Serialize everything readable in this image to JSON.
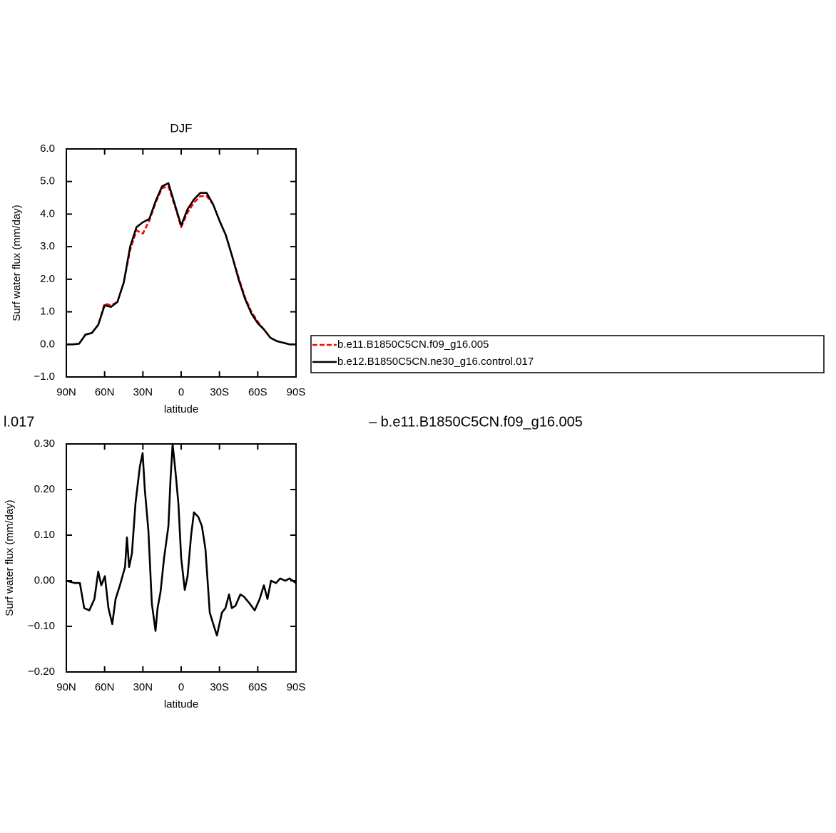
{
  "chart_data": [
    {
      "type": "line",
      "title": "DJF",
      "xlabel": "latitude",
      "ylabel": "Surf water flux (mm/day)",
      "x": [
        90,
        85,
        80,
        75,
        70,
        65,
        60,
        55,
        50,
        45,
        40,
        35,
        30,
        25,
        20,
        15,
        10,
        5,
        0,
        -5,
        -10,
        -15,
        -20,
        -25,
        -30,
        -35,
        -40,
        -45,
        -50,
        -55,
        -60,
        -65,
        -70,
        -75,
        -80,
        -85,
        -90
      ],
      "series": [
        {
          "name": "b.e11.B1850C5CN.f09_g16.005",
          "color": "#ff0000",
          "dashed": true,
          "values": [
            0.0,
            0.0,
            0.02,
            0.3,
            0.35,
            0.6,
            1.25,
            1.2,
            1.3,
            1.9,
            2.9,
            3.5,
            3.4,
            3.8,
            4.35,
            4.8,
            4.85,
            4.25,
            3.6,
            4.05,
            4.35,
            4.55,
            4.55,
            4.3,
            3.8,
            3.35,
            2.7,
            2.05,
            1.45,
            1.0,
            0.7,
            0.45,
            0.2,
            0.1,
            0.05,
            0.0,
            0.0
          ]
        },
        {
          "name": "b.e12.B1850C5CN.ne30_g16.control.017",
          "color": "#000000",
          "dashed": false,
          "values": [
            0.0,
            0.0,
            0.02,
            0.3,
            0.35,
            0.6,
            1.2,
            1.15,
            1.3,
            1.9,
            3.0,
            3.6,
            3.75,
            3.85,
            4.4,
            4.85,
            4.95,
            4.3,
            3.65,
            4.15,
            4.45,
            4.65,
            4.65,
            4.3,
            3.8,
            3.35,
            2.7,
            2.0,
            1.4,
            0.95,
            0.65,
            0.45,
            0.2,
            0.1,
            0.05,
            0.0,
            0.0
          ]
        }
      ],
      "xlim": [
        90,
        -90
      ],
      "xticks": [
        {
          "value": 90,
          "label": "90N"
        },
        {
          "value": 60,
          "label": "60N"
        },
        {
          "value": 30,
          "label": "30N"
        },
        0,
        {
          "value": -30,
          "label": "30S"
        },
        {
          "value": -60,
          "label": "60S"
        },
        {
          "value": -90,
          "label": "90S"
        }
      ],
      "ylim": [
        -1,
        6
      ],
      "yticks": [
        {
          "value": -1,
          "label": "−1.0"
        },
        {
          "value": 0,
          "label": "0.0"
        },
        {
          "value": 1,
          "label": "1.0"
        },
        {
          "value": 2,
          "label": "2.0"
        },
        {
          "value": 3,
          "label": "3.0"
        },
        {
          "value": 4,
          "label": "4.0"
        },
        {
          "value": 5,
          "label": "5.0"
        },
        {
          "value": 6,
          "label": "6.0"
        }
      ],
      "legend": "right"
    },
    {
      "type": "line",
      "xlabel": "latitude",
      "ylabel": "Surf water flux (mm/day)",
      "x": [
        90,
        83.3,
        79.4,
        76,
        72,
        68,
        65,
        62.6,
        59.8,
        57,
        54,
        51.4,
        48,
        44,
        42.5,
        40.8,
        38.6,
        35.8,
        32.4,
        30.2,
        28.5,
        25.7,
        23,
        20.1,
        18.5,
        16.2,
        13.4,
        10,
        8.4,
        6.7,
        4.5,
        2.2,
        0,
        -2.8,
        -5,
        -7.8,
        -10,
        -13.4,
        -16.2,
        -19,
        -22.4,
        -25.7,
        -28,
        -31.9,
        -34.7,
        -37.5,
        -39.7,
        -42.5,
        -46.4,
        -49.2,
        -53.7,
        -57.6,
        -61.5,
        -64.8,
        -67.6,
        -70.4,
        -74.3,
        -77.6,
        -81.6,
        -84.9,
        -90
      ],
      "series": [
        {
          "color": "#000000",
          "values": [
            0.0,
            -0.005,
            -0.005,
            -0.06,
            -0.065,
            -0.04,
            0.02,
            -0.01,
            0.01,
            -0.06,
            -0.095,
            -0.04,
            -0.01,
            0.03,
            0.095,
            0.03,
            0.06,
            0.17,
            0.25,
            0.28,
            0.2,
            0.11,
            -0.05,
            -0.11,
            -0.06,
            -0.025,
            0.05,
            0.12,
            0.22,
            0.3,
            0.24,
            0.17,
            0.05,
            -0.02,
            0.01,
            0.1,
            0.15,
            0.14,
            0.12,
            0.07,
            -0.07,
            -0.1,
            -0.12,
            -0.07,
            -0.06,
            -0.03,
            -0.06,
            -0.055,
            -0.03,
            -0.035,
            -0.05,
            -0.065,
            -0.04,
            -0.01,
            -0.04,
            0.0,
            -0.005,
            0.005,
            0.0,
            0.005,
            -0.005
          ]
        }
      ],
      "xlim": [
        90,
        -90
      ],
      "xticks": [
        {
          "value": 90,
          "label": "90N"
        },
        {
          "value": 60,
          "label": "60N"
        },
        {
          "value": 30,
          "label": "30N"
        },
        0,
        {
          "value": -30,
          "label": "30S"
        },
        {
          "value": -60,
          "label": "60S"
        },
        {
          "value": -90,
          "label": "90S"
        }
      ],
      "ylim": [
        -0.2,
        0.3
      ],
      "yticks": [
        {
          "value": -0.2,
          "label": "−0.20"
        },
        {
          "value": -0.1,
          "label": "−0.10"
        },
        {
          "value": 0,
          "label": "0.00"
        },
        {
          "value": 0.1,
          "label": "0.10"
        },
        {
          "value": 0.2,
          "label": "0.20"
        },
        {
          "value": 0.3,
          "label": "0.30"
        }
      ],
      "annotations": [
        "l.017",
        "– b.e11.B1850C5CN.f09_g16.005"
      ]
    }
  ]
}
